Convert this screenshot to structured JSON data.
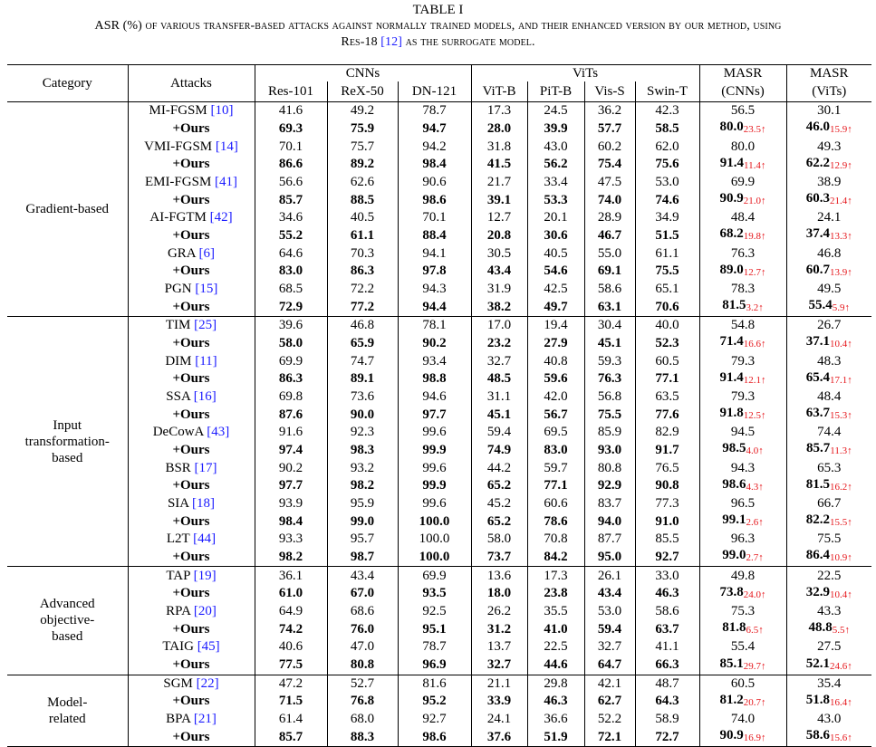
{
  "caption": {
    "title": "TABLE I",
    "line1_pre": "ASR (%) of various transfer-based attacks against normally trained models, and their enhanced version by our method, using",
    "line2_pre": "Res-18 ",
    "line2_cite": "[12]",
    "line2_post": " as the surrogate model."
  },
  "header": {
    "category": "Category",
    "attacks": "Attacks",
    "cnns": "CNNs",
    "vits": "ViTs",
    "masr": "MASR",
    "masr_cnns": "(CNNs)",
    "masr_vits": "(ViTs)",
    "cols": [
      "Res-101",
      "ReX-50",
      "DN-121",
      "ViT-B",
      "PiT-B",
      "Vis-S",
      "Swin-T"
    ]
  },
  "groups": [
    {
      "category": [
        "Gradient-based"
      ],
      "rows": [
        {
          "name": "MI-FGSM ",
          "cite": "[10]",
          "bold": false,
          "values": [
            "41.6",
            "49.2",
            "78.7",
            "17.3",
            "24.5",
            "36.2",
            "42.3"
          ],
          "masr_c": "56.5",
          "masr_c_inc": "",
          "masr_v": "30.1",
          "masr_v_inc": ""
        },
        {
          "name": "+Ours",
          "cite": "",
          "bold": true,
          "values": [
            "69.3",
            "75.9",
            "94.7",
            "28.0",
            "39.9",
            "57.7",
            "58.5"
          ],
          "masr_c": "80.0",
          "masr_c_inc": "23.5↑",
          "masr_v": "46.0",
          "masr_v_inc": "15.9↑"
        },
        {
          "name": "VMI-FGSM ",
          "cite": "[14]",
          "bold": false,
          "values": [
            "70.1",
            "75.7",
            "94.2",
            "31.8",
            "43.0",
            "60.2",
            "62.0"
          ],
          "masr_c": "80.0",
          "masr_c_inc": "",
          "masr_v": "49.3",
          "masr_v_inc": ""
        },
        {
          "name": "+Ours",
          "cite": "",
          "bold": true,
          "values": [
            "86.6",
            "89.2",
            "98.4",
            "41.5",
            "56.2",
            "75.4",
            "75.6"
          ],
          "masr_c": "91.4",
          "masr_c_inc": "11.4↑",
          "masr_v": "62.2",
          "masr_v_inc": "12.9↑"
        },
        {
          "name": "EMI-FGSM ",
          "cite": "[41]",
          "bold": false,
          "values": [
            "56.6",
            "62.6",
            "90.6",
            "21.7",
            "33.4",
            "47.5",
            "53.0"
          ],
          "masr_c": "69.9",
          "masr_c_inc": "",
          "masr_v": "38.9",
          "masr_v_inc": ""
        },
        {
          "name": "+Ours",
          "cite": "",
          "bold": true,
          "values": [
            "85.7",
            "88.5",
            "98.6",
            "39.1",
            "53.3",
            "74.0",
            "74.6"
          ],
          "masr_c": "90.9",
          "masr_c_inc": "21.0↑",
          "masr_v": "60.3",
          "masr_v_inc": "21.4↑"
        },
        {
          "name": "AI-FGTM ",
          "cite": "[42]",
          "bold": false,
          "values": [
            "34.6",
            "40.5",
            "70.1",
            "12.7",
            "20.1",
            "28.9",
            "34.9"
          ],
          "masr_c": "48.4",
          "masr_c_inc": "",
          "masr_v": "24.1",
          "masr_v_inc": ""
        },
        {
          "name": "+Ours",
          "cite": "",
          "bold": true,
          "values": [
            "55.2",
            "61.1",
            "88.4",
            "20.8",
            "30.6",
            "46.7",
            "51.5"
          ],
          "masr_c": "68.2",
          "masr_c_inc": "19.8↑",
          "masr_v": "37.4",
          "masr_v_inc": "13.3↑"
        },
        {
          "name": "GRA ",
          "cite": "[6]",
          "bold": false,
          "values": [
            "64.6",
            "70.3",
            "94.1",
            "30.5",
            "40.5",
            "55.0",
            "61.1"
          ],
          "masr_c": "76.3",
          "masr_c_inc": "",
          "masr_v": "46.8",
          "masr_v_inc": ""
        },
        {
          "name": "+Ours",
          "cite": "",
          "bold": true,
          "values": [
            "83.0",
            "86.3",
            "97.8",
            "43.4",
            "54.6",
            "69.1",
            "75.5"
          ],
          "masr_c": "89.0",
          "masr_c_inc": "12.7↑",
          "masr_v": "60.7",
          "masr_v_inc": "13.9↑"
        },
        {
          "name": "PGN ",
          "cite": "[15]",
          "bold": false,
          "values": [
            "68.5",
            "72.2",
            "94.3",
            "31.9",
            "42.5",
            "58.6",
            "65.1"
          ],
          "masr_c": "78.3",
          "masr_c_inc": "",
          "masr_v": "49.5",
          "masr_v_inc": ""
        },
        {
          "name": "+Ours",
          "cite": "",
          "bold": true,
          "values": [
            "72.9",
            "77.2",
            "94.4",
            "38.2",
            "49.7",
            "63.1",
            "70.6"
          ],
          "masr_c": "81.5",
          "masr_c_inc": "3.2↑",
          "masr_v": "55.4",
          "masr_v_inc": "5.9↑"
        }
      ]
    },
    {
      "category": [
        "Input",
        "transformation-",
        "based"
      ],
      "rows": [
        {
          "name": "TIM ",
          "cite": "[25]",
          "bold": false,
          "values": [
            "39.6",
            "46.8",
            "78.1",
            "17.0",
            "19.4",
            "30.4",
            "40.0"
          ],
          "masr_c": "54.8",
          "masr_c_inc": "",
          "masr_v": "26.7",
          "masr_v_inc": ""
        },
        {
          "name": "+Ours",
          "cite": "",
          "bold": true,
          "values": [
            "58.0",
            "65.9",
            "90.2",
            "23.2",
            "27.9",
            "45.1",
            "52.3"
          ],
          "masr_c": "71.4",
          "masr_c_inc": "16.6↑",
          "masr_v": "37.1",
          "masr_v_inc": "10.4↑"
        },
        {
          "name": "DIM ",
          "cite": "[11]",
          "bold": false,
          "values": [
            "69.9",
            "74.7",
            "93.4",
            "32.7",
            "40.8",
            "59.3",
            "60.5"
          ],
          "masr_c": "79.3",
          "masr_c_inc": "",
          "masr_v": "48.3",
          "masr_v_inc": ""
        },
        {
          "name": "+Ours",
          "cite": "",
          "bold": true,
          "values": [
            "86.3",
            "89.1",
            "98.8",
            "48.5",
            "59.6",
            "76.3",
            "77.1"
          ],
          "masr_c": "91.4",
          "masr_c_inc": "12.1↑",
          "masr_v": "65.4",
          "masr_v_inc": "17.1↑"
        },
        {
          "name": "SSA ",
          "cite": "[16]",
          "bold": false,
          "values": [
            "69.8",
            "73.6",
            "94.6",
            "31.1",
            "42.0",
            "56.8",
            "63.5"
          ],
          "masr_c": "79.3",
          "masr_c_inc": "",
          "masr_v": "48.4",
          "masr_v_inc": ""
        },
        {
          "name": "+Ours",
          "cite": "",
          "bold": true,
          "values": [
            "87.6",
            "90.0",
            "97.7",
            "45.1",
            "56.7",
            "75.5",
            "77.6"
          ],
          "masr_c": "91.8",
          "masr_c_inc": "12.5↑",
          "masr_v": "63.7",
          "masr_v_inc": "15.3↑"
        },
        {
          "name": "DeCowA ",
          "cite": "[43]",
          "bold": false,
          "values": [
            "91.6",
            "92.3",
            "99.6",
            "59.4",
            "69.5",
            "85.9",
            "82.9"
          ],
          "masr_c": "94.5",
          "masr_c_inc": "",
          "masr_v": "74.4",
          "masr_v_inc": ""
        },
        {
          "name": "+Ours",
          "cite": "",
          "bold": true,
          "values": [
            "97.4",
            "98.3",
            "99.9",
            "74.9",
            "83.0",
            "93.0",
            "91.7"
          ],
          "masr_c": "98.5",
          "masr_c_inc": "4.0↑",
          "masr_v": "85.7",
          "masr_v_inc": "11.3↑"
        },
        {
          "name": "BSR ",
          "cite": "[17]",
          "bold": false,
          "values": [
            "90.2",
            "93.2",
            "99.6",
            "44.2",
            "59.7",
            "80.8",
            "76.5"
          ],
          "masr_c": "94.3",
          "masr_c_inc": "",
          "masr_v": "65.3",
          "masr_v_inc": ""
        },
        {
          "name": "+Ours",
          "cite": "",
          "bold": true,
          "values": [
            "97.7",
            "98.2",
            "99.9",
            "65.2",
            "77.1",
            "92.9",
            "90.8"
          ],
          "masr_c": "98.6",
          "masr_c_inc": "4.3↑",
          "masr_v": "81.5",
          "masr_v_inc": "16.2↑"
        },
        {
          "name": "SIA ",
          "cite": "[18]",
          "bold": false,
          "values": [
            "93.9",
            "95.9",
            "99.6",
            "45.2",
            "60.6",
            "83.7",
            "77.3"
          ],
          "masr_c": "96.5",
          "masr_c_inc": "",
          "masr_v": "66.7",
          "masr_v_inc": ""
        },
        {
          "name": "+Ours",
          "cite": "",
          "bold": true,
          "values": [
            "98.4",
            "99.0",
            "100.0",
            "65.2",
            "78.6",
            "94.0",
            "91.0"
          ],
          "masr_c": "99.1",
          "masr_c_inc": "2.6↑",
          "masr_v": "82.2",
          "masr_v_inc": "15.5↑"
        },
        {
          "name": "L2T ",
          "cite": "[44]",
          "bold": false,
          "values": [
            "93.3",
            "95.7",
            "100.0",
            "58.0",
            "70.8",
            "87.7",
            "85.5"
          ],
          "masr_c": "96.3",
          "masr_c_inc": "",
          "masr_v": "75.5",
          "masr_v_inc": ""
        },
        {
          "name": "+Ours",
          "cite": "",
          "bold": true,
          "values": [
            "98.2",
            "98.7",
            "100.0",
            "73.7",
            "84.2",
            "95.0",
            "92.7"
          ],
          "masr_c": "99.0",
          "masr_c_inc": "2.7↑",
          "masr_v": "86.4",
          "masr_v_inc": "10.9↑"
        }
      ]
    },
    {
      "category": [
        "Advanced",
        "objective-",
        "based"
      ],
      "rows": [
        {
          "name": "TAP ",
          "cite": "[19]",
          "bold": false,
          "values": [
            "36.1",
            "43.4",
            "69.9",
            "13.6",
            "17.3",
            "26.1",
            "33.0"
          ],
          "masr_c": "49.8",
          "masr_c_inc": "",
          "masr_v": "22.5",
          "masr_v_inc": ""
        },
        {
          "name": "+Ours",
          "cite": "",
          "bold": true,
          "values": [
            "61.0",
            "67.0",
            "93.5",
            "18.0",
            "23.8",
            "43.4",
            "46.3"
          ],
          "masr_c": "73.8",
          "masr_c_inc": "24.0↑",
          "masr_v": "32.9",
          "masr_v_inc": "10.4↑"
        },
        {
          "name": "RPA ",
          "cite": "[20]",
          "bold": false,
          "values": [
            "64.9",
            "68.6",
            "92.5",
            "26.2",
            "35.5",
            "53.0",
            "58.6"
          ],
          "masr_c": "75.3",
          "masr_c_inc": "",
          "masr_v": "43.3",
          "masr_v_inc": ""
        },
        {
          "name": "+Ours",
          "cite": "",
          "bold": true,
          "values": [
            "74.2",
            "76.0",
            "95.1",
            "31.2",
            "41.0",
            "59.4",
            "63.7"
          ],
          "masr_c": "81.8",
          "masr_c_inc": "6.5↑",
          "masr_v": "48.8",
          "masr_v_inc": "5.5↑"
        },
        {
          "name": "TAIG ",
          "cite": "[45]",
          "bold": false,
          "values": [
            "40.6",
            "47.0",
            "78.7",
            "13.7",
            "22.5",
            "32.7",
            "41.1"
          ],
          "masr_c": "55.4",
          "masr_c_inc": "",
          "masr_v": "27.5",
          "masr_v_inc": ""
        },
        {
          "name": "+Ours",
          "cite": "",
          "bold": true,
          "values": [
            "77.5",
            "80.8",
            "96.9",
            "32.7",
            "44.6",
            "64.7",
            "66.3"
          ],
          "masr_c": "85.1",
          "masr_c_inc": "29.7↑",
          "masr_v": "52.1",
          "masr_v_inc": "24.6↑"
        }
      ]
    },
    {
      "category": [
        "Model-",
        "related"
      ],
      "rows": [
        {
          "name": "SGM ",
          "cite": "[22]",
          "bold": false,
          "values": [
            "47.2",
            "52.7",
            "81.6",
            "21.1",
            "29.8",
            "42.1",
            "48.7"
          ],
          "masr_c": "60.5",
          "masr_c_inc": "",
          "masr_v": "35.4",
          "masr_v_inc": ""
        },
        {
          "name": "+Ours",
          "cite": "",
          "bold": true,
          "values": [
            "71.5",
            "76.8",
            "95.2",
            "33.9",
            "46.3",
            "62.7",
            "64.3"
          ],
          "masr_c": "81.2",
          "masr_c_inc": "20.7↑",
          "masr_v": "51.8",
          "masr_v_inc": "16.4↑"
        },
        {
          "name": "BPA ",
          "cite": "[21]",
          "bold": false,
          "values": [
            "61.4",
            "68.0",
            "92.7",
            "24.1",
            "36.6",
            "52.2",
            "58.9"
          ],
          "masr_c": "74.0",
          "masr_c_inc": "",
          "masr_v": "43.0",
          "masr_v_inc": ""
        },
        {
          "name": "+Ours",
          "cite": "",
          "bold": true,
          "values": [
            "85.7",
            "88.3",
            "98.6",
            "37.6",
            "51.9",
            "72.1",
            "72.7"
          ],
          "masr_c": "90.9",
          "masr_c_inc": "16.9↑",
          "masr_v": "58.6",
          "masr_v_inc": "15.6↑"
        }
      ]
    }
  ]
}
